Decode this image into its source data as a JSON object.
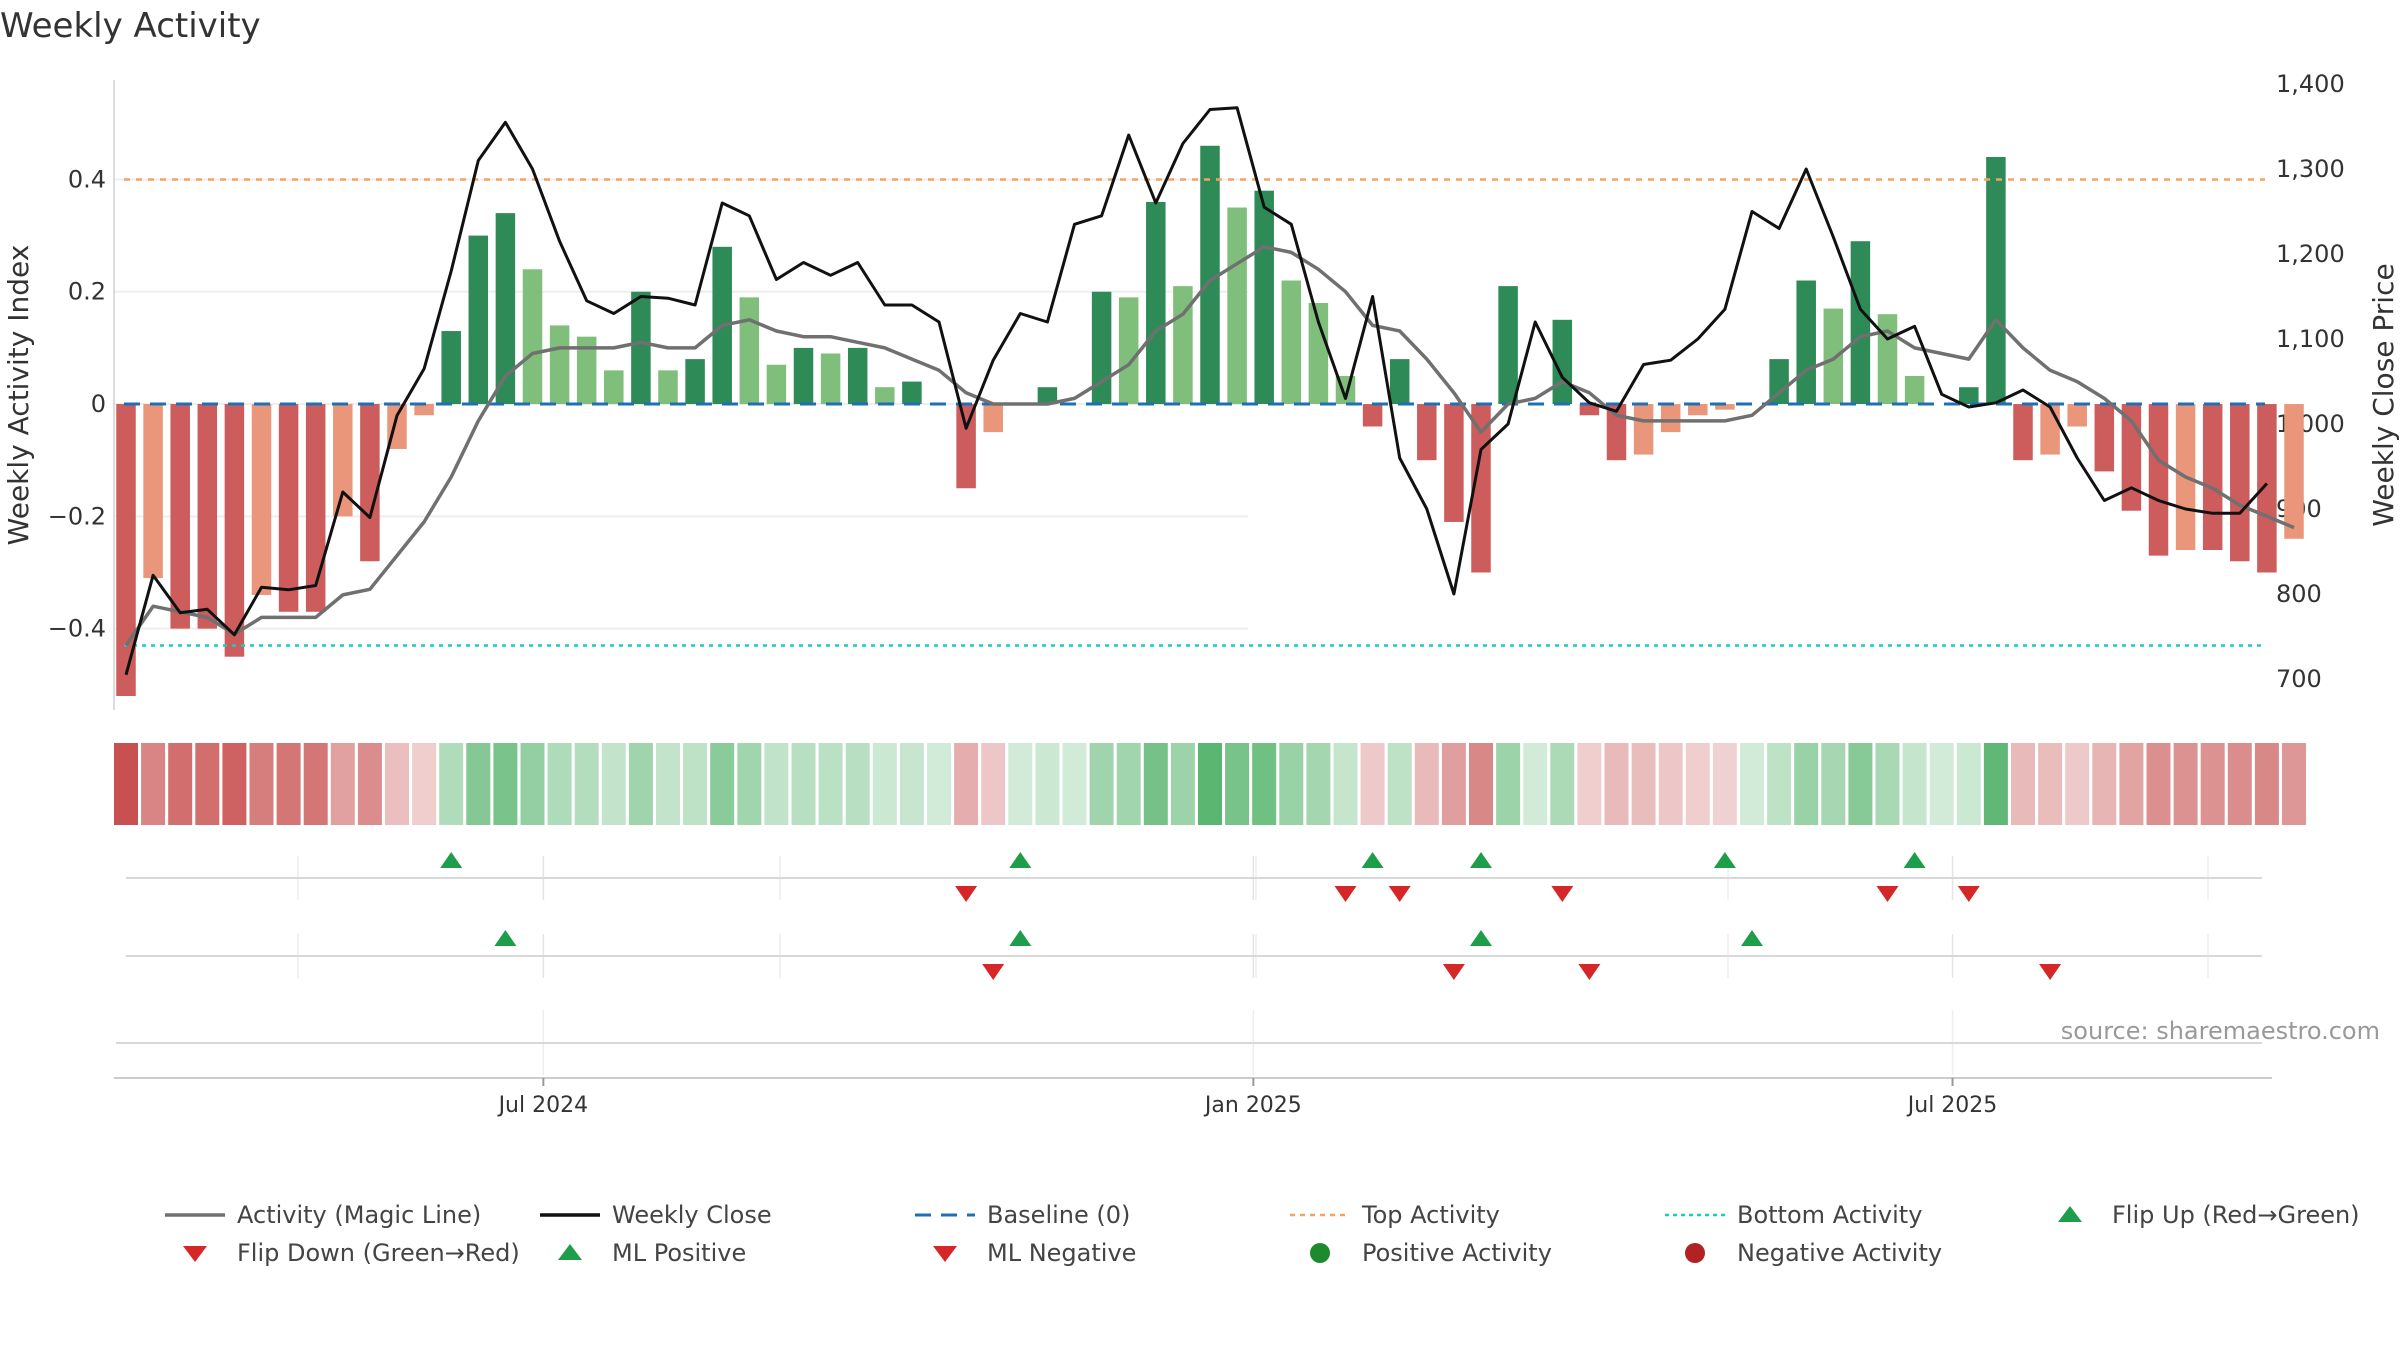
{
  "title": "Weekly Activity",
  "source": "source: sharemaestro.com",
  "colors": {
    "strong_green": "#2e8b57",
    "light_green": "#7fbf7b",
    "strong_red": "#cd5c5c",
    "light_red": "#e9967a",
    "magic_line": "#707070",
    "close_line": "#111111",
    "baseline": "#1f6fb4",
    "top_line": "#f4a460",
    "bottom_line": "#20c8c8",
    "up_marker": "#1e9e4a",
    "down_marker": "#d62728"
  },
  "chart_data": {
    "type": "bar+line",
    "title": "Weekly Activity",
    "ylabel_left": "Weekly Activity Index",
    "ylabel_right": "Weekly Close Price",
    "ylim_left": [
      -0.52,
      0.57
    ],
    "ylim_right": [
      680,
      1400
    ],
    "left_ticks": [
      0.4,
      0.2,
      0,
      -0.2,
      -0.4
    ],
    "left_tick_labels": [
      "0.4",
      "0.2",
      "0",
      "−0.2",
      "−0.4"
    ],
    "right_ticks": [
      1400,
      1300,
      1200,
      1100,
      1000,
      900,
      800,
      700
    ],
    "right_tick_labels": [
      "1,400",
      "1,300",
      "1,200",
      "1,100",
      "1,000",
      "900",
      "800",
      "700"
    ],
    "x_tick_labels": [
      "Jul 2024",
      "Jan 2025",
      "Jul 2025"
    ],
    "x_tick_weeks": [
      15.4,
      41.6,
      67.4
    ],
    "top_activity": 0.4,
    "bottom_activity": -0.43,
    "activity": [
      -0.52,
      -0.31,
      -0.4,
      -0.4,
      -0.45,
      -0.34,
      -0.37,
      -0.37,
      -0.2,
      -0.28,
      -0.08,
      -0.02,
      0.13,
      0.3,
      0.34,
      0.24,
      0.14,
      0.12,
      0.06,
      0.2,
      0.06,
      0.08,
      0.28,
      0.19,
      0.07,
      0.1,
      0.09,
      0.1,
      0.03,
      0.04,
      0.0,
      -0.15,
      -0.05,
      0.0,
      0.03,
      0.0,
      0.2,
      0.19,
      0.36,
      0.21,
      0.46,
      0.35,
      0.38,
      0.22,
      0.18,
      0.05,
      -0.04,
      0.08,
      -0.1,
      -0.21,
      -0.3,
      0.21,
      0.0,
      0.15,
      -0.02,
      -0.1,
      -0.09,
      -0.05,
      -0.02,
      -0.01,
      0.0,
      0.08,
      0.22,
      0.17,
      0.29,
      0.16,
      0.05,
      0.0,
      0.03,
      0.44,
      -0.1,
      -0.09,
      -0.04,
      -0.12,
      -0.19,
      -0.27,
      -0.26,
      -0.26,
      -0.28,
      -0.3,
      -0.24
    ],
    "strong": [
      1,
      0,
      1,
      1,
      1,
      0,
      1,
      1,
      0,
      1,
      0,
      0,
      1,
      1,
      1,
      0,
      0,
      0,
      0,
      1,
      0,
      1,
      1,
      0,
      0,
      1,
      0,
      1,
      0,
      1,
      0,
      1,
      0,
      0,
      1,
      0,
      1,
      0,
      1,
      0,
      1,
      0,
      1,
      0,
      0,
      0,
      1,
      1,
      1,
      1,
      1,
      1,
      0,
      1,
      1,
      1,
      0,
      0,
      0,
      0,
      0,
      1,
      1,
      0,
      1,
      0,
      0,
      0,
      1,
      1,
      1,
      0,
      0,
      1,
      1,
      1,
      0,
      1,
      1,
      1,
      0
    ],
    "magic_line": [
      -0.43,
      -0.36,
      -0.37,
      -0.38,
      -0.41,
      -0.38,
      -0.38,
      -0.38,
      -0.34,
      -0.33,
      -0.27,
      -0.21,
      -0.13,
      -0.03,
      0.05,
      0.09,
      0.1,
      0.1,
      0.1,
      0.11,
      0.1,
      0.1,
      0.14,
      0.15,
      0.13,
      0.12,
      0.12,
      0.11,
      0.1,
      0.08,
      0.06,
      0.02,
      0.0,
      0.0,
      0.0,
      0.01,
      0.04,
      0.07,
      0.13,
      0.16,
      0.22,
      0.25,
      0.28,
      0.27,
      0.24,
      0.2,
      0.14,
      0.13,
      0.08,
      0.02,
      -0.05,
      0.0,
      0.01,
      0.04,
      0.02,
      -0.02,
      -0.03,
      -0.03,
      -0.03,
      -0.03,
      -0.02,
      0.02,
      0.06,
      0.08,
      0.12,
      0.13,
      0.1,
      0.09,
      0.08,
      0.15,
      0.1,
      0.06,
      0.04,
      0.01,
      -0.03,
      -0.1,
      -0.13,
      -0.15,
      -0.18,
      -0.2,
      -0.22
    ],
    "weekly_close": [
      705,
      822,
      778,
      782,
      752,
      808,
      805,
      810,
      920,
      890,
      1010,
      1065,
      1180,
      1310,
      1355,
      1300,
      1215,
      1145,
      1130,
      1150,
      1148,
      1140,
      1260,
      1245,
      1170,
      1190,
      1175,
      1190,
      1140,
      1140,
      1120,
      995,
      1075,
      1130,
      1120,
      1235,
      1245,
      1340,
      1260,
      1330,
      1370,
      1372,
      1255,
      1235,
      1120,
      1030,
      1150,
      960,
      900,
      800,
      970,
      1000,
      1120,
      1055,
      1025,
      1015,
      1070,
      1075,
      1100,
      1135,
      1250,
      1230,
      1300,
      1220,
      1135,
      1100,
      1115,
      1035,
      1020,
      1025,
      1040,
      1020,
      960,
      910,
      925,
      910,
      900,
      895,
      895,
      930
    ],
    "signal_rows": [
      {
        "up": [
          12,
          33,
          46,
          50,
          59,
          66
        ],
        "down": [
          31,
          45,
          47,
          53,
          65,
          68
        ]
      },
      {
        "up": [
          14,
          33,
          50,
          60
        ],
        "down": [
          32,
          49,
          54,
          71
        ]
      }
    ],
    "legend": {
      "magic_line": "Activity (Magic Line)",
      "weekly_close": "Weekly Close",
      "baseline": "Baseline (0)",
      "top": "Top Activity",
      "bottom": "Bottom Activity",
      "flip_up": "Flip Up (Red→Green)",
      "flip_down": "Flip Down (Green→Red)",
      "ml_positive": "ML Positive",
      "ml_negative": "ML Negative",
      "positive": "Positive Activity",
      "negative": "Negative Activity"
    }
  }
}
